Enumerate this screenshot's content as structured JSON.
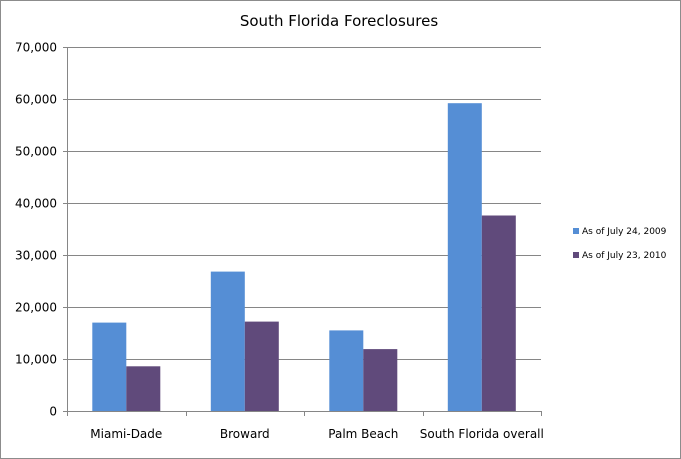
{
  "chart_data": {
    "type": "bar",
    "title": "South Florida Foreclosures",
    "xlabel": "",
    "ylabel": "",
    "categories": [
      "Miami-Dade",
      "Broward",
      "Palm Beach",
      "South Florida overall"
    ],
    "series": [
      {
        "name": "As of July 24, 2009",
        "color": "#558ed5",
        "values": [
          17000,
          26800,
          15500,
          59200
        ]
      },
      {
        "name": "As of July 23, 2010",
        "color": "#604a7b",
        "values": [
          8600,
          17200,
          11900,
          37600
        ]
      }
    ],
    "ylim": [
      0,
      70000
    ],
    "yticks": [
      0,
      10000,
      20000,
      30000,
      40000,
      50000,
      60000,
      70000
    ],
    "ytick_labels": [
      "0",
      "10,000",
      "20,000",
      "30,000",
      "40,000",
      "50,000",
      "60,000",
      "70,000"
    ],
    "grid": true,
    "legend_position": "right",
    "colors": {
      "gridline": "#868686",
      "axis": "#868686",
      "border": "#8c8c8c"
    }
  }
}
